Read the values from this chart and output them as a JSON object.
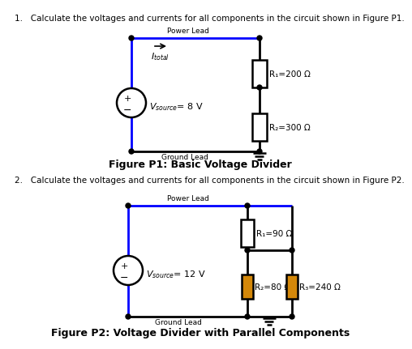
{
  "title1": "Figure P1: Basic Voltage Divider",
  "title2": "Figure P2: Voltage Divider with Parallel Components",
  "question1": "1.   Calculate the voltages and currents for all components in the circuit shown in Figure P1.",
  "question2": "2.   Calculate the voltages and currents for all components in the circuit shown in Figure P2.",
  "wire_color": "#0000FF",
  "line_color": "#000000",
  "bg_color": "#FFFFFF",
  "R1_label": "R₁=200 Ω",
  "R2_label": "R₂=300 Ω",
  "R3_label": "R₁=90 Ω",
  "R4_label": "R₂=80 Ω",
  "R5_label": "R₃=240 Ω",
  "V1_label": "= 8 V",
  "V2_label": "= 12 V",
  "power_lead": "Power Lead",
  "ground_lead": "Ground Lead"
}
